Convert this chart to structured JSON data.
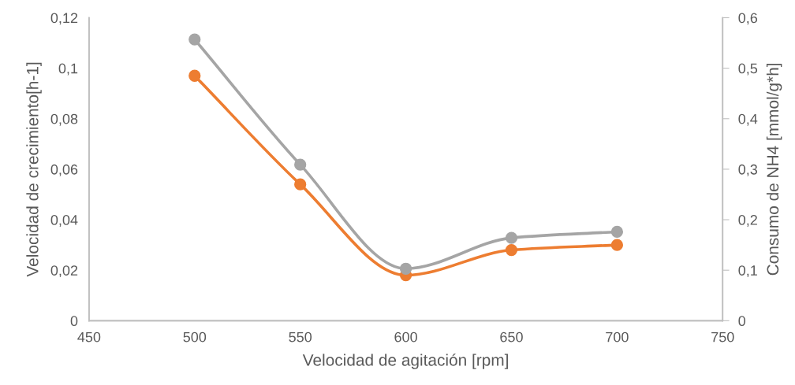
{
  "chart_data": {
    "type": "line",
    "xlabel": "Velocidad de agitación [rpm]",
    "ylabel": "Velocidad de crecimiento[h-1]",
    "y2label": "Consumo de NH4 [mmol/g*h]",
    "x": [
      500,
      550,
      600,
      650,
      700
    ],
    "series": [
      {
        "color": "#ed7d31",
        "values": [
          0.097,
          0.054,
          0.018,
          0.028,
          0.03
        ]
      },
      {
        "color": "#a5a5a5",
        "axis": "y2",
        "values": [
          0.557,
          0.309,
          0.103,
          0.164,
          0.176
        ]
      }
    ],
    "marker": "circle",
    "line_style": "solid",
    "grid": false,
    "xlim": [
      450,
      750
    ],
    "xticks": [
      450,
      500,
      550,
      600,
      650,
      700,
      750
    ],
    "ylim": [
      0,
      0.12
    ],
    "yticks": [
      {
        "value": 0,
        "label": "0"
      },
      {
        "value": 0.02,
        "label": "0,02"
      },
      {
        "value": 0.04,
        "label": "0,04"
      },
      {
        "value": 0.06,
        "label": "0,06"
      },
      {
        "value": 0.08,
        "label": "0,08"
      },
      {
        "value": 0.1,
        "label": "0,1"
      },
      {
        "value": 0.12,
        "label": "0,12"
      }
    ],
    "y2lim": [
      0,
      0.6
    ],
    "y2ticks": [
      {
        "value": 0,
        "label": "0"
      },
      {
        "value": 0.1,
        "label": "0,1"
      },
      {
        "value": 0.2,
        "label": "0,2"
      },
      {
        "value": 0.3,
        "label": "0,3"
      },
      {
        "value": 0.4,
        "label": "0,4"
      },
      {
        "value": 0.5,
        "label": "0,5"
      },
      {
        "value": 0.6,
        "label": "0,6"
      }
    ]
  }
}
